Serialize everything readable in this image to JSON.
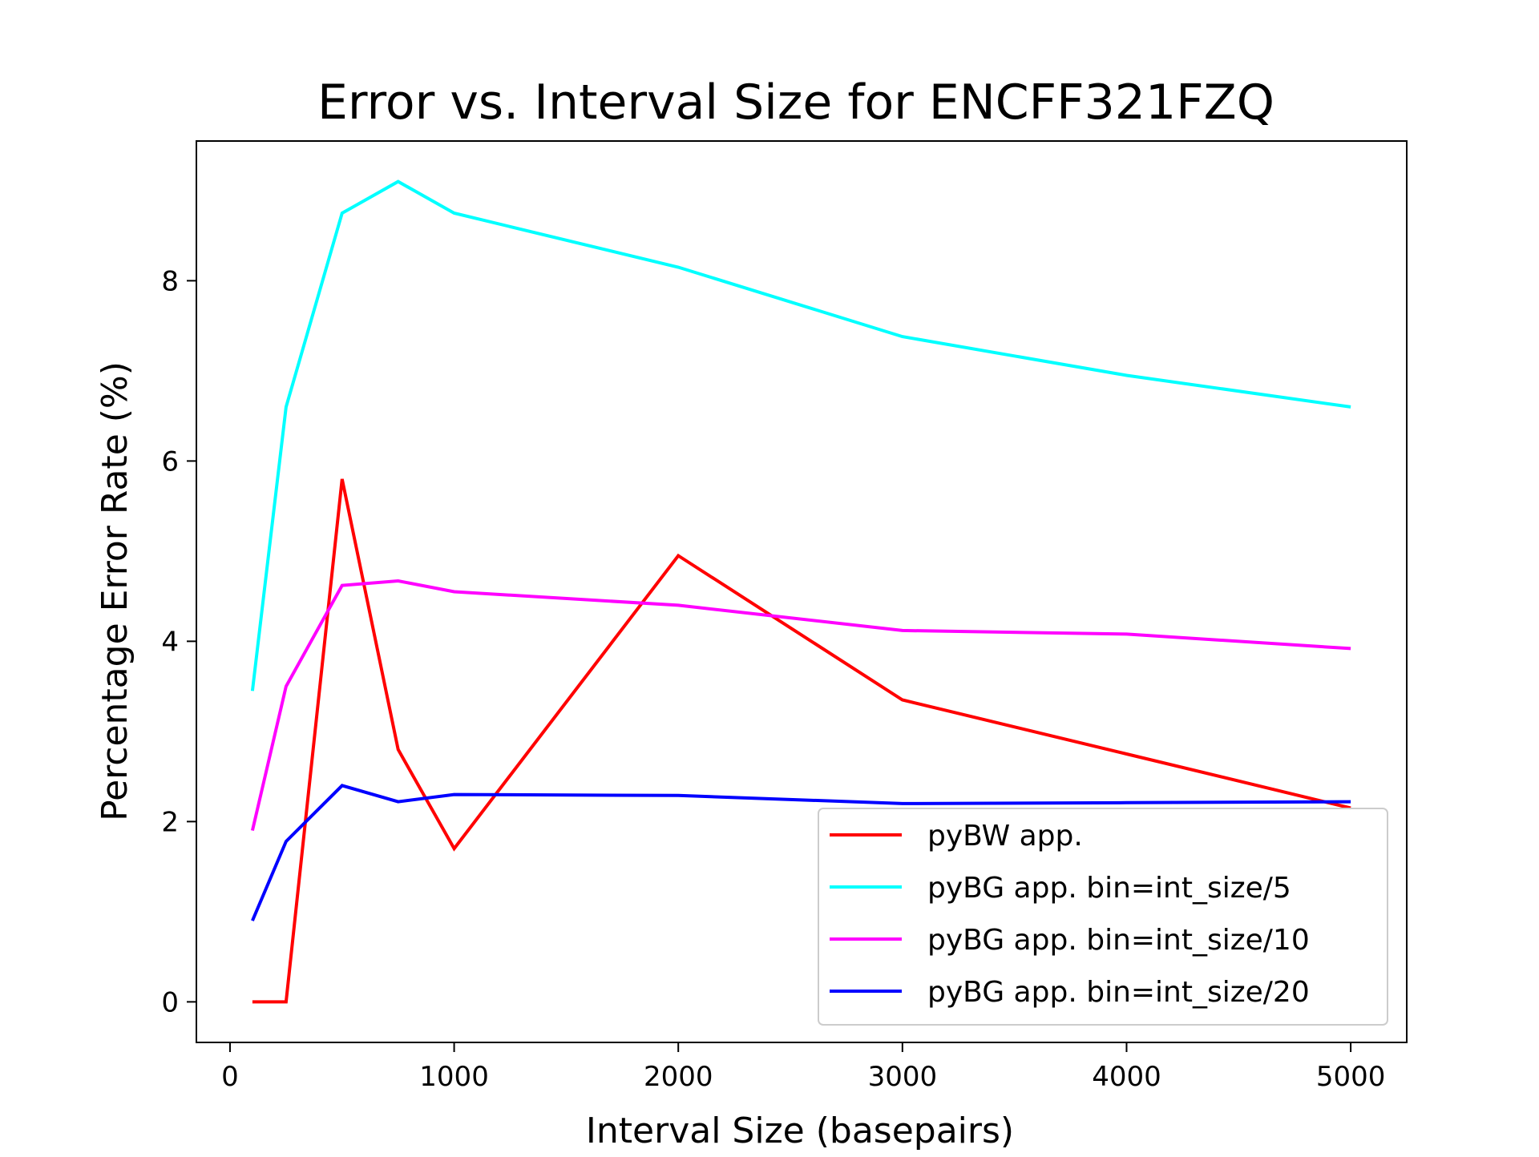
{
  "chart_data": {
    "type": "line",
    "title": "Error vs. Interval Size for ENCFF321FZQ",
    "xlabel": "Interval Size (basepairs)",
    "ylabel": "Percentage Error Rate (%)",
    "xlim": [
      -150,
      5250
    ],
    "ylim": [
      -0.45,
      9.55
    ],
    "xticks": [
      0,
      1000,
      2000,
      3000,
      4000,
      5000
    ],
    "yticks": [
      0,
      2,
      4,
      6,
      8
    ],
    "grid": false,
    "legend_position": "lower-right",
    "x": [
      100,
      250,
      500,
      750,
      1000,
      2000,
      3000,
      4000,
      5000
    ],
    "series": [
      {
        "name": "pyBW app.",
        "color": "#ff0000",
        "values": [
          0.0,
          0.0,
          5.8,
          2.8,
          1.7,
          4.95,
          3.35,
          2.75,
          2.15
        ]
      },
      {
        "name": "pyBG app. bin=int_size/5",
        "color": "#00ffff",
        "values": [
          3.45,
          6.6,
          8.75,
          9.1,
          8.75,
          8.15,
          7.38,
          6.95,
          6.6
        ]
      },
      {
        "name": "pyBG app. bin=int_size/10",
        "color": "#ff00ff",
        "values": [
          1.9,
          3.5,
          4.62,
          4.67,
          4.55,
          4.4,
          4.12,
          4.08,
          3.92
        ]
      },
      {
        "name": "pyBG app. bin=int_size/20",
        "color": "#0000ff",
        "values": [
          0.9,
          1.78,
          2.4,
          2.22,
          2.3,
          2.29,
          2.2,
          2.21,
          2.22
        ]
      }
    ]
  }
}
